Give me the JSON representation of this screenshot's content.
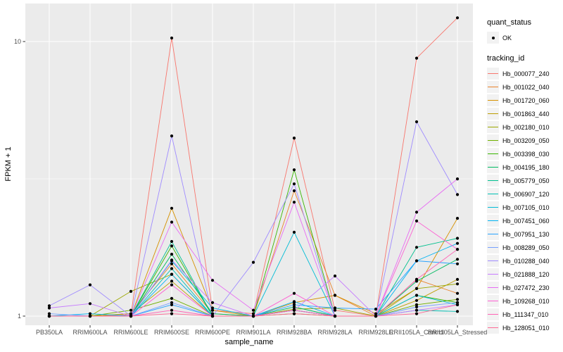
{
  "figure": {
    "background": "#FFFFFF",
    "panel_background": "#EBEBEB",
    "gridline_color": "#FFFFFF",
    "tick_label_color": "#4D4D4D",
    "point_color": "#000000"
  },
  "chart_data": {
    "type": "line",
    "title": "",
    "xlabel": "sample_name",
    "ylabel": "FPKM + 1",
    "y_scale": "log10",
    "y_ticks": [
      1,
      10
    ],
    "y_minor_ticks": [
      3.162
    ],
    "ylim": [
      0.93,
      13.7
    ],
    "grid": "on",
    "legend_position": "right",
    "categories": [
      "PB350LA",
      "RRIM600LA",
      "RRIM600LE",
      "RRIM600SE",
      "RRIM600PE",
      "RRIM901LA",
      "RRIM928BA",
      "RRIM928LA",
      "RRIM928LE",
      "RRII105LA_Control",
      "RRII105LA_Stressed"
    ],
    "series": [
      {
        "name": "Hb_000077_240",
        "color": "#F8766D",
        "values": [
          1.0,
          1.0,
          1.01,
          10.3,
          1.05,
          1.02,
          4.45,
          1.05,
          1.0,
          8.7,
          12.2
        ]
      },
      {
        "name": "Hb_001022_040",
        "color": "#E9842C",
        "values": [
          1.0,
          1.0,
          1.02,
          1.55,
          1.02,
          1.0,
          2.86,
          1.19,
          1.0,
          1.36,
          1.21
        ]
      },
      {
        "name": "Hb_001720_060",
        "color": "#D69100",
        "values": [
          1.0,
          1.0,
          1.0,
          2.47,
          1.05,
          1.0,
          1.12,
          1.19,
          1.02,
          1.26,
          2.27
        ]
      },
      {
        "name": "Hb_001863_440",
        "color": "#BC9D00",
        "values": [
          1.0,
          1.0,
          1.02,
          1.34,
          1.0,
          1.0,
          1.05,
          1.0,
          1.0,
          1.14,
          1.36
        ]
      },
      {
        "name": "Hb_002180_010",
        "color": "#9CA700",
        "values": [
          1.0,
          1.0,
          1.23,
          1.42,
          1.0,
          1.0,
          1.06,
          1.07,
          1.0,
          1.26,
          1.31
        ]
      },
      {
        "name": "Hb_003209_050",
        "color": "#6FB000",
        "values": [
          1.0,
          1.0,
          1.05,
          1.16,
          1.0,
          1.0,
          1.02,
          1.0,
          1.0,
          1.1,
          1.15
        ]
      },
      {
        "name": "Hb_003398_030",
        "color": "#39B600",
        "values": [
          1.0,
          1.0,
          1.0,
          1.8,
          1.0,
          1.0,
          3.41,
          1.0,
          1.0,
          1.19,
          1.12
        ]
      },
      {
        "name": "Hb_004195_180",
        "color": "#00BB61",
        "values": [
          1.0,
          1.0,
          1.0,
          1.68,
          1.02,
          1.0,
          1.08,
          1.0,
          1.0,
          1.34,
          1.61
        ]
      },
      {
        "name": "Hb_005779_050",
        "color": "#00C08E",
        "values": [
          1.0,
          1.0,
          1.0,
          1.87,
          1.0,
          1.0,
          1.05,
          1.0,
          1.0,
          1.78,
          1.92
        ]
      },
      {
        "name": "Hb_006907_120",
        "color": "#00C0B4",
        "values": [
          1.0,
          1.0,
          1.0,
          1.49,
          1.0,
          1.0,
          1.05,
          1.0,
          1.0,
          1.05,
          1.04
        ]
      },
      {
        "name": "Hb_007105_010",
        "color": "#00BCD6",
        "values": [
          1.0,
          1.0,
          1.0,
          1.59,
          1.07,
          1.0,
          2.02,
          1.0,
          1.0,
          1.19,
          1.1
        ]
      },
      {
        "name": "Hb_007451_060",
        "color": "#00B3F2",
        "values": [
          1.0,
          1.02,
          1.0,
          1.42,
          1.0,
          1.0,
          1.13,
          1.0,
          1.0,
          1.59,
          1.84
        ]
      },
      {
        "name": "Hb_007951_130",
        "color": "#29A3FF",
        "values": [
          1.0,
          1.0,
          1.0,
          1.1,
          1.0,
          1.0,
          1.1,
          1.07,
          1.06,
          1.59,
          1.55
        ]
      },
      {
        "name": "Hb_008289_050",
        "color": "#75A1FF",
        "values": [
          1.02,
          1.0,
          1.0,
          1.12,
          1.0,
          1.0,
          1.05,
          1.0,
          1.0,
          1.08,
          1.12
        ]
      },
      {
        "name": "Hb_010288_040",
        "color": "#9F8BFF",
        "values": [
          1.09,
          1.3,
          1.0,
          4.53,
          1.0,
          1.57,
          3.03,
          1.0,
          1.0,
          5.1,
          2.77
        ]
      },
      {
        "name": "Hb_021888_120",
        "color": "#C77CFF",
        "values": [
          1.07,
          1.11,
          1.0,
          1.6,
          1.12,
          1.0,
          1.05,
          1.4,
          1.0,
          1.05,
          1.1
        ]
      },
      {
        "name": "Hb_027472_230",
        "color": "#E76BF3",
        "values": [
          1.0,
          1.0,
          1.0,
          2.2,
          1.35,
          1.05,
          2.6,
          1.0,
          1.0,
          2.39,
          3.16
        ]
      },
      {
        "name": "Hb_109268_010",
        "color": "#FD61D3",
        "values": [
          1.0,
          1.0,
          1.0,
          1.3,
          1.0,
          1.0,
          1.21,
          1.0,
          1.0,
          2.22,
          1.75
        ]
      },
      {
        "name": "Hb_111347_010",
        "color": "#FF62B6",
        "values": [
          1.0,
          1.0,
          1.0,
          1.05,
          1.0,
          1.0,
          1.05,
          1.0,
          1.0,
          1.36,
          1.75
        ]
      },
      {
        "name": "Hb_128051_010",
        "color": "#FF6A95",
        "values": [
          1.0,
          1.0,
          1.0,
          1.02,
          1.0,
          1.0,
          1.02,
          1.0,
          1.0,
          1.02,
          1.1
        ]
      }
    ]
  },
  "legend": {
    "quant_status": {
      "title": "quant_status",
      "items": [
        {
          "label": "OK",
          "symbol": "point"
        }
      ]
    },
    "tracking_id": {
      "title": "tracking_id"
    }
  }
}
